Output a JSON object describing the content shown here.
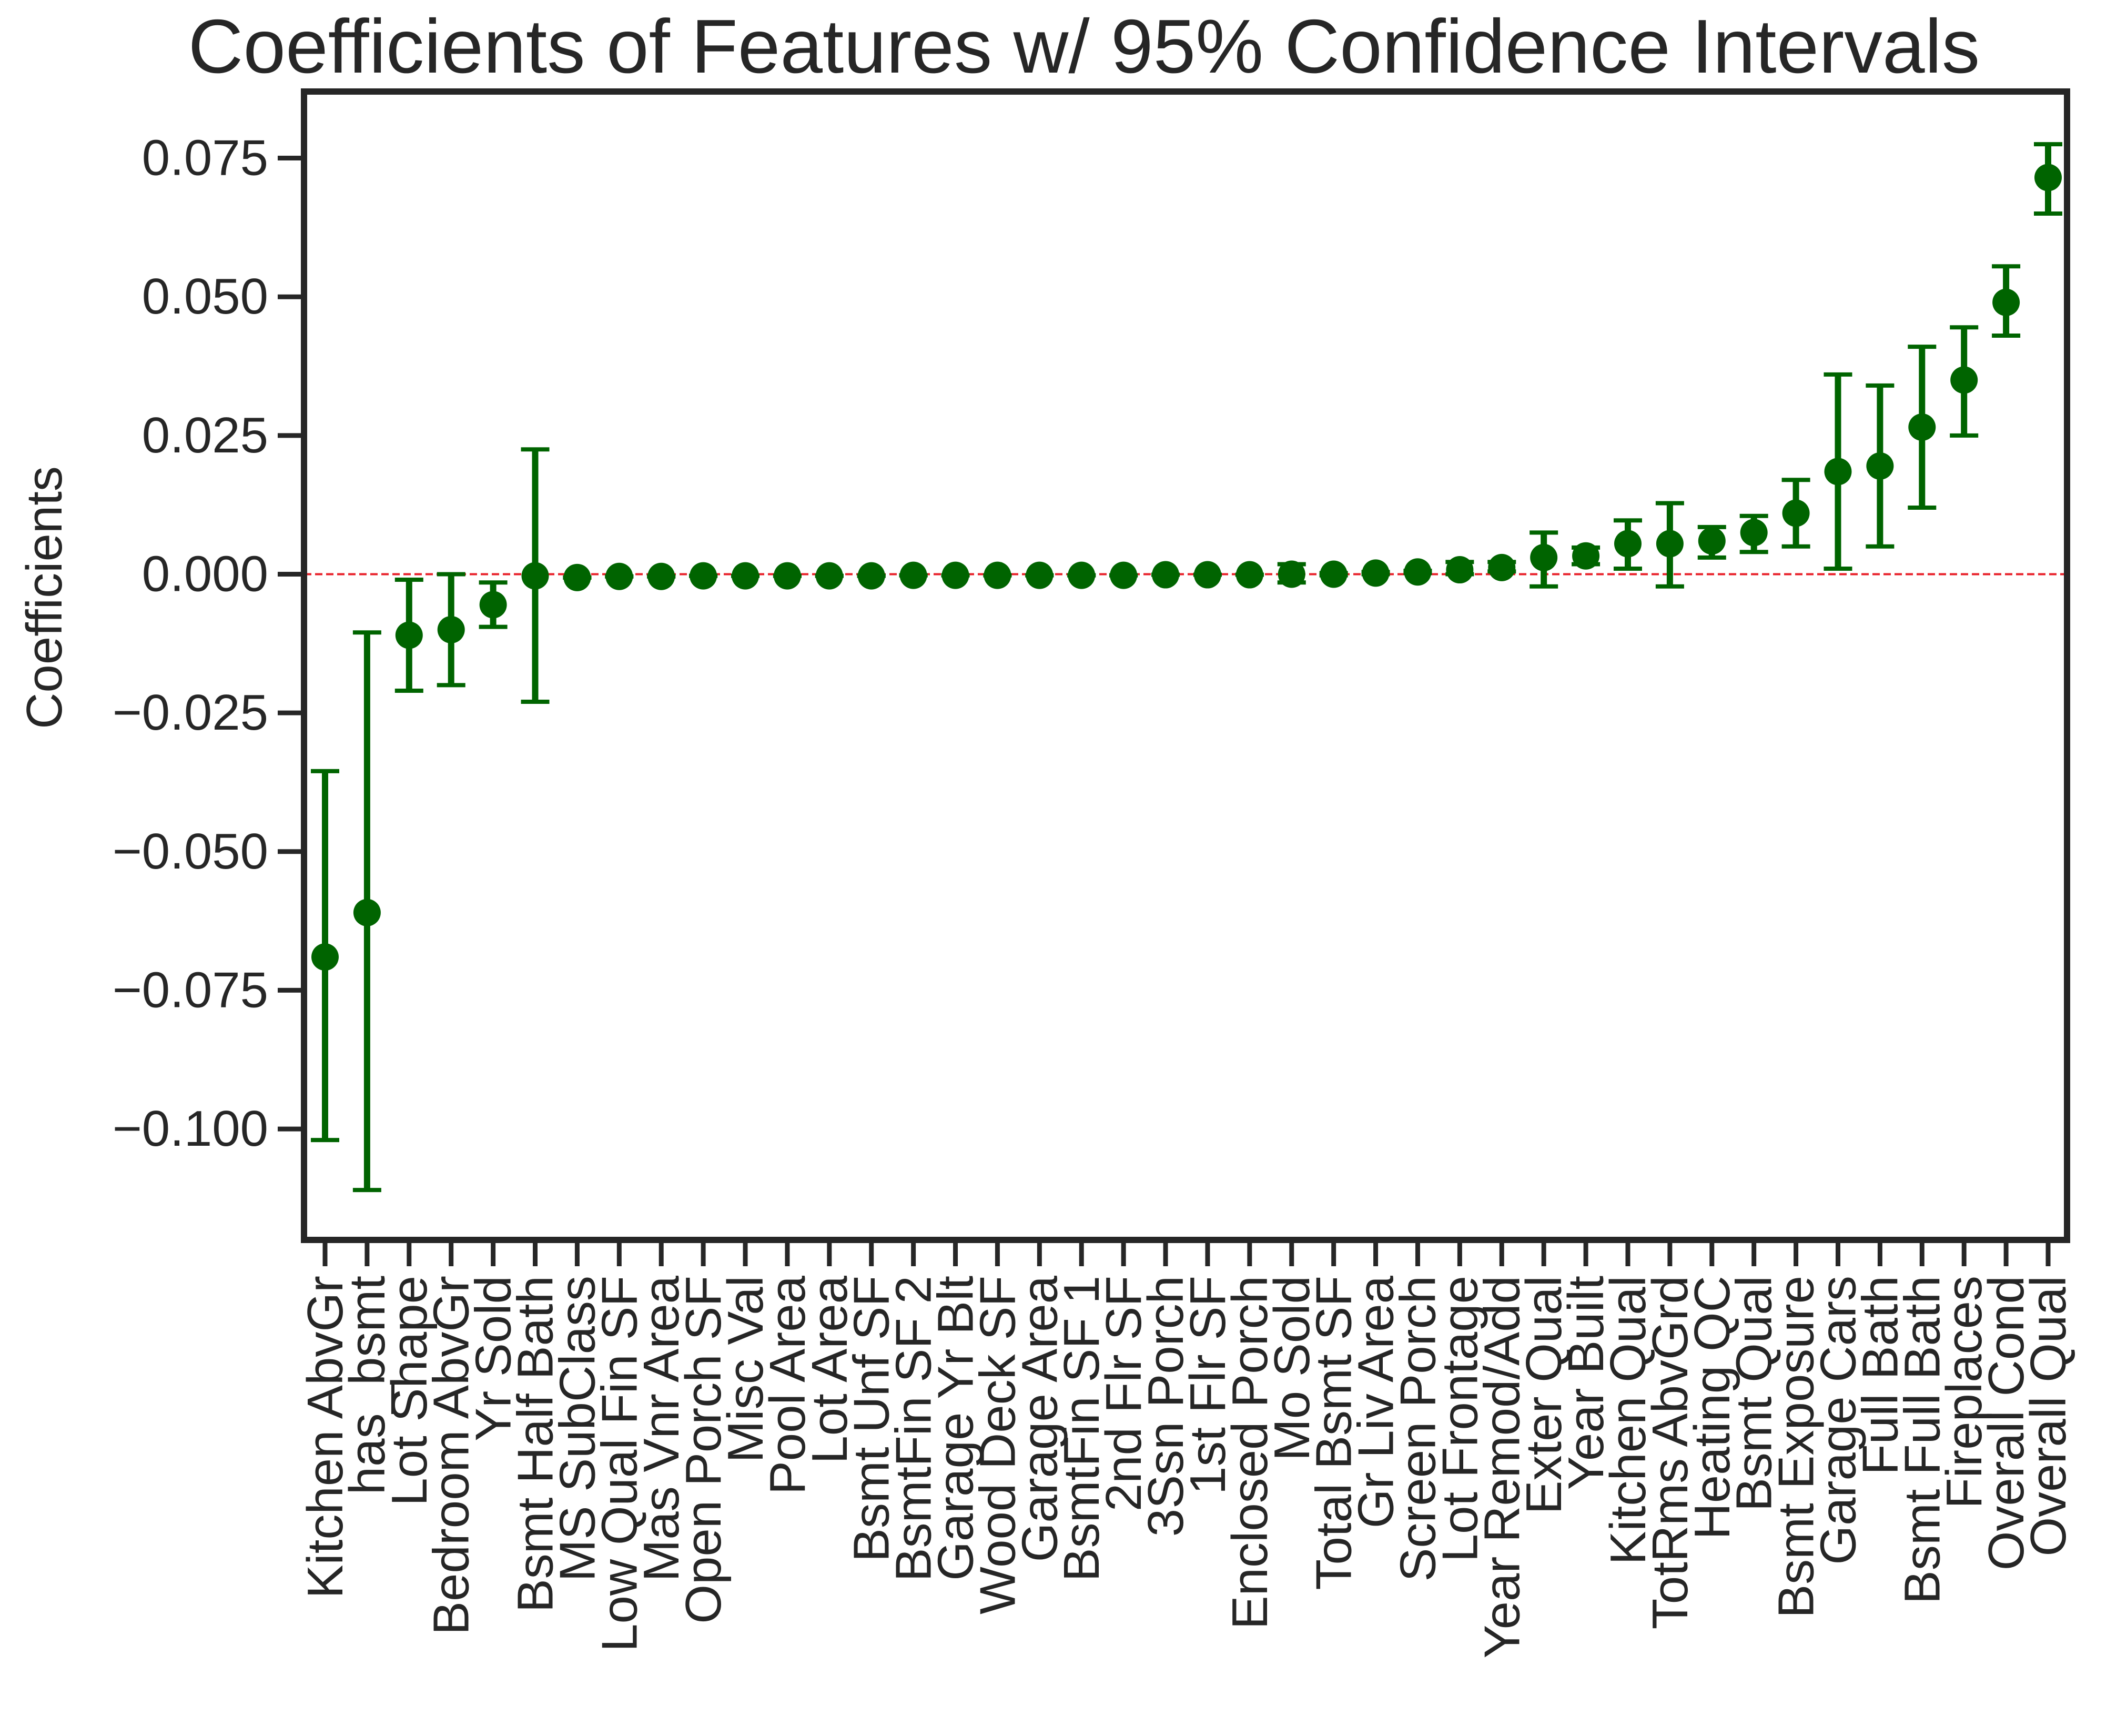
{
  "chart_data": {
    "type": "scatter",
    "title": "Coefficients of Features w/ 95% Confidence Intervals",
    "xlabel": "",
    "ylabel": "Coefficients",
    "ylim": [
      -0.12,
      0.087
    ],
    "yticks": [
      -0.1,
      -0.075,
      -0.05,
      -0.025,
      0.0,
      0.025,
      0.05,
      0.075
    ],
    "ytick_labels": [
      "−0.100",
      "−0.075",
      "−0.050",
      "−0.025",
      "0.000",
      "0.025",
      "0.050",
      "0.075"
    ],
    "reference_line": {
      "y": 0.0,
      "color": "#e8202a",
      "style": "dashed"
    },
    "marker_color": "#006400",
    "grid": false,
    "categories": [
      "Kitchen AbvGr",
      "has_bsmt",
      "Lot Shape",
      "Bedroom AbvGr",
      "Yr Sold",
      "Bsmt Half Bath",
      "MS SubClass",
      "Low Qual Fin SF",
      "Mas Vnr Area",
      "Open Porch SF",
      "Misc Val",
      "Pool Area",
      "Lot Area",
      "Bsmt Unf SF",
      "BsmtFin SF 2",
      "Garage Yr Blt",
      "Wood Deck SF",
      "Garage Area",
      "BsmtFin SF 1",
      "2nd Flr SF",
      "3Ssn Porch",
      "1st Flr SF",
      "Enclosed Porch",
      "Mo Sold",
      "Total Bsmt SF",
      "Gr Liv Area",
      "Screen Porch",
      "Lot Frontage",
      "Year Remod/Add",
      "Exter Qual",
      "Year Built",
      "Kitchen Qual",
      "TotRms AbvGrd",
      "Heating QC",
      "Bsmt Qual",
      "Bsmt Exposure",
      "Garage Cars",
      "Full Bath",
      "Bsmt Full Bath",
      "Fireplaces",
      "Overall Cond",
      "Overall Qual"
    ],
    "values": [
      -0.069,
      -0.061,
      -0.011,
      -0.01,
      -0.0055,
      -0.0003,
      -0.0006,
      -0.0004,
      -0.0004,
      -0.0003,
      -0.0003,
      -0.0003,
      -0.0003,
      -0.0003,
      -0.0002,
      -0.0002,
      -0.0002,
      -0.0002,
      -0.0002,
      -0.0002,
      -0.0001,
      -0.0001,
      -0.0001,
      0.0,
      0.0,
      0.0002,
      0.0004,
      0.0008,
      0.0012,
      0.003,
      0.0033,
      0.0055,
      0.0055,
      0.006,
      0.0075,
      0.011,
      0.0185,
      0.0195,
      0.0265,
      0.035,
      0.049,
      0.0715
    ],
    "ci_lower": [
      -0.102,
      -0.111,
      -0.021,
      -0.02,
      -0.0095,
      -0.023,
      -0.0006,
      -0.0004,
      -0.0004,
      -0.0003,
      -0.0003,
      -0.0003,
      -0.0003,
      -0.0003,
      -0.0002,
      -0.0002,
      -0.0002,
      -0.0002,
      -0.0002,
      -0.0002,
      -0.0001,
      -0.0001,
      -0.0001,
      -0.0015,
      -0.0002,
      0.0,
      0.0002,
      0.0,
      0.0005,
      -0.0022,
      0.0018,
      0.001,
      -0.0022,
      0.003,
      0.004,
      0.005,
      0.001,
      0.005,
      0.012,
      0.025,
      0.043,
      0.065
    ],
    "ci_upper": [
      -0.0355,
      -0.0105,
      -0.001,
      0.0,
      -0.0015,
      0.0225,
      -0.0006,
      -0.0004,
      -0.0004,
      -0.0003,
      -0.0003,
      -0.0003,
      -0.0003,
      -0.0003,
      -0.0002,
      -0.0002,
      -0.0002,
      -0.0002,
      -0.0002,
      -0.0002,
      -0.0001,
      -0.0001,
      -0.0001,
      0.0018,
      0.0002,
      0.0004,
      0.0006,
      0.0022,
      0.0022,
      0.0075,
      0.0048,
      0.0097,
      0.0128,
      0.0085,
      0.0105,
      0.017,
      0.036,
      0.034,
      0.041,
      0.0445,
      0.0555,
      0.0775
    ]
  }
}
